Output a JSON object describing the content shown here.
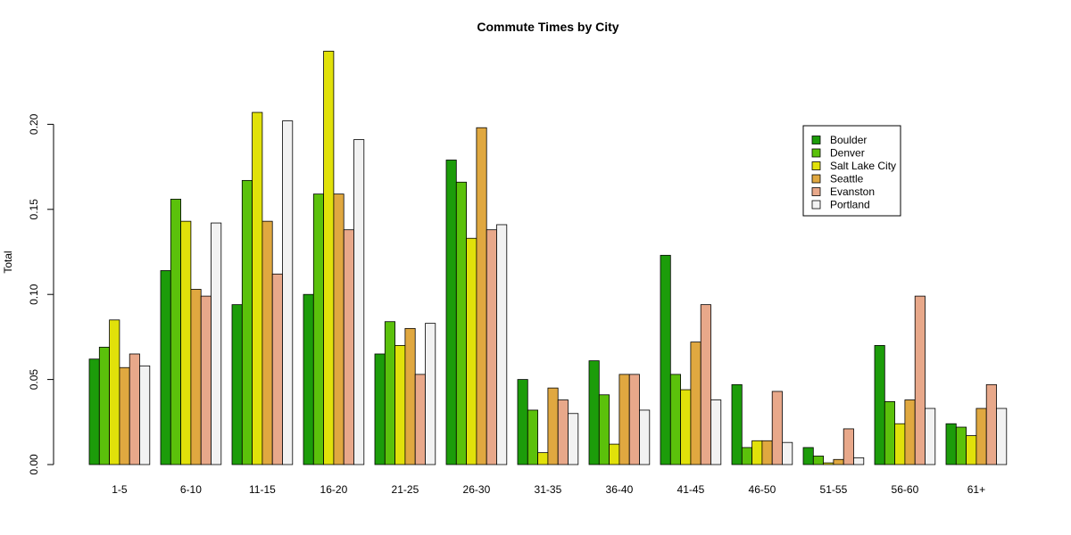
{
  "chart_data": {
    "type": "bar",
    "title": "Commute Times by City",
    "xlabel": "",
    "ylabel": "Total",
    "ylim": [
      0,
      0.24
    ],
    "yticks": [
      0.0,
      0.05,
      0.1,
      0.15,
      0.2
    ],
    "ytick_labels": [
      "0.00",
      "0.05",
      "0.10",
      "0.15",
      "0.20"
    ],
    "grid": false,
    "legend_position": "top-right",
    "categories": [
      "1-5",
      "6-10",
      "11-15",
      "16-20",
      "21-25",
      "26-30",
      "31-35",
      "36-40",
      "41-45",
      "46-50",
      "51-55",
      "56-60",
      "61+"
    ],
    "series": [
      {
        "name": "Boulder",
        "color": "#1c9c0a",
        "values": [
          0.062,
          0.114,
          0.094,
          0.1,
          0.065,
          0.179,
          0.05,
          0.061,
          0.123,
          0.047,
          0.01,
          0.07,
          0.024
        ]
      },
      {
        "name": "Denver",
        "color": "#5bc10b",
        "values": [
          0.069,
          0.156,
          0.167,
          0.159,
          0.084,
          0.166,
          0.032,
          0.041,
          0.053,
          0.01,
          0.005,
          0.037,
          0.022
        ]
      },
      {
        "name": "Salt Lake City",
        "color": "#e1e10a",
        "values": [
          0.085,
          0.143,
          0.207,
          0.243,
          0.07,
          0.133,
          0.007,
          0.012,
          0.044,
          0.014,
          0.001,
          0.024,
          0.017
        ]
      },
      {
        "name": "Seattle",
        "color": "#e0a840",
        "values": [
          0.057,
          0.103,
          0.143,
          0.159,
          0.08,
          0.198,
          0.045,
          0.053,
          0.072,
          0.014,
          0.003,
          0.038,
          0.033
        ]
      },
      {
        "name": "Evanston",
        "color": "#e8a88a",
        "values": [
          0.065,
          0.099,
          0.112,
          0.138,
          0.053,
          0.138,
          0.038,
          0.053,
          0.094,
          0.043,
          0.021,
          0.099,
          0.047
        ]
      },
      {
        "name": "Portland",
        "color": "#f2f2f2",
        "values": [
          0.058,
          0.142,
          0.202,
          0.191,
          0.083,
          0.141,
          0.03,
          0.032,
          0.038,
          0.013,
          0.004,
          0.033,
          0.033
        ]
      }
    ]
  }
}
